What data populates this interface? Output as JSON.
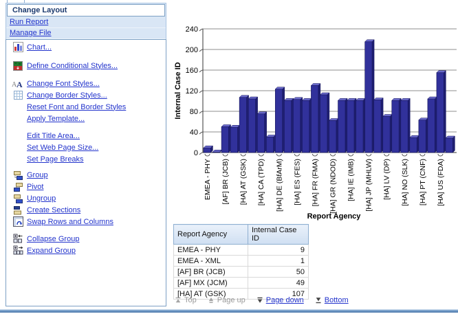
{
  "sidebar": {
    "title": "Change Layout",
    "top_links": [
      {
        "label": "Run Report"
      },
      {
        "label": "Manage File"
      }
    ],
    "menu": [
      {
        "label": "Chart...",
        "icon": "bar-chart-icon"
      },
      {
        "label": "Define Conditional Styles...",
        "icon": "conditional-styles-icon"
      },
      {
        "label": "Change Font Styles...",
        "icon": "font-styles-icon"
      },
      {
        "label": "Change Border Styles...",
        "icon": "border-grid-icon"
      },
      {
        "label": "Reset Font and Border Styles",
        "icon": null
      },
      {
        "label": "Apply Template...",
        "icon": null
      },
      {
        "label": "Edit Title Area...",
        "icon": null
      },
      {
        "label": "Set Web Page Size...",
        "icon": null
      },
      {
        "label": "Set Page Breaks",
        "icon": null
      },
      {
        "label": "Group",
        "icon": "group-icon"
      },
      {
        "label": "Pivot",
        "icon": "pivot-icon"
      },
      {
        "label": "Ungroup",
        "icon": "ungroup-icon"
      },
      {
        "label": "Create Sections",
        "icon": "create-sections-icon"
      },
      {
        "label": "Swap Rows and Columns",
        "icon": "swap-rows-columns-icon"
      },
      {
        "label": "Collapse Group",
        "icon": "collapse-group-icon"
      },
      {
        "label": "Expand Group",
        "icon": "expand-group-icon"
      }
    ]
  },
  "chart_data": {
    "type": "bar",
    "title": "",
    "xlabel": "Report Agency",
    "ylabel": "Internal Case ID",
    "ylim": [
      0,
      240
    ],
    "yticks": [
      0,
      40,
      80,
      120,
      160,
      200,
      240
    ],
    "grid": true,
    "legend": false,
    "bar_color": "#31319b",
    "bar_top_color": "#6a6acb",
    "bar_side_color": "#1f1f72",
    "label_every_n_bars": 2,
    "x_tick_labels": [
      "EMEA - PHY",
      "[AF] BR (JCB)",
      "[HA] AT (GSK)",
      "[HA] CA (TPD)",
      "[HA] DE (BfArM)",
      "[HA] ES (FES)",
      "[HA] FR (FMA)",
      "[HA] GR (NDOD)",
      "[HA] IE (IMB)",
      "[HA] JP (MHLW)",
      "[HA] LV (DP)",
      "[HA] NO (SLK)",
      "[HA] PT (CNF)",
      "[HA] US (FDA)"
    ],
    "values": [
      9,
      1,
      50,
      49,
      107,
      104,
      75,
      30,
      123,
      101,
      103,
      101,
      130,
      112,
      62,
      101,
      101,
      101,
      215,
      102,
      70,
      101,
      101,
      29,
      63,
      104,
      155,
      28
    ]
  },
  "table": {
    "columns": [
      "Report Agency",
      "Internal Case ID"
    ],
    "rows": [
      [
        "EMEA - PHY",
        "9"
      ],
      [
        "EMEA - XML",
        "1"
      ],
      [
        "[AF] BR (JCB)",
        "50"
      ],
      [
        "[AF] MX (JCM)",
        "49"
      ],
      [
        "[HA] AT (GSK)",
        "107"
      ]
    ]
  },
  "pager": {
    "items": [
      {
        "label": "Top",
        "icon": "scroll-to-top-icon",
        "enabled": false
      },
      {
        "label": "Page up",
        "icon": "page-up-icon",
        "enabled": false
      },
      {
        "label": "Page down",
        "icon": "page-down-icon",
        "enabled": true
      },
      {
        "label": "Bottom",
        "icon": "scroll-to-bottom-icon",
        "enabled": true
      }
    ]
  },
  "colors": {
    "link": "#2233cc",
    "panel_header_text": "#1c3a6e",
    "panel_bg": "#d9e6f5",
    "panel_border": "#7da0c4",
    "disabled_text": "#9b9b9b",
    "bottom_border": "#4a78ab"
  }
}
